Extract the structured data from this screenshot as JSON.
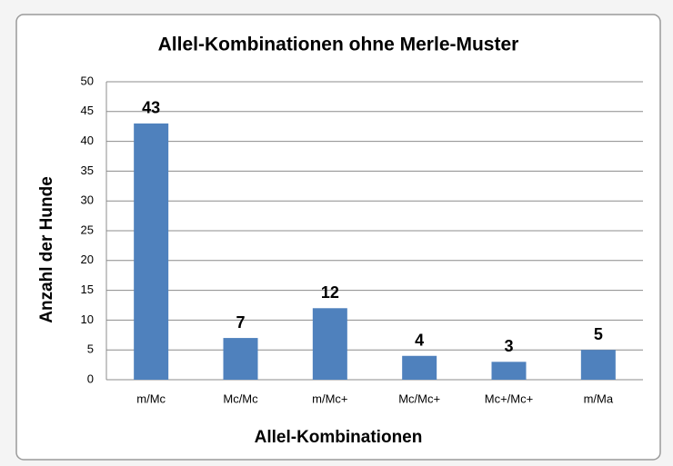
{
  "chart_data": {
    "type": "bar",
    "title": "Allel-Kombinationen ohne Merle-Muster",
    "x_label": "Allel-Kombinationen",
    "y_label": "Anzahl der Hunde",
    "categories": [
      "m/Mc",
      "Mc/Mc",
      "m/Mc+",
      "Mc/Mc+",
      "Mc+/Mc+",
      "m/Ma"
    ],
    "values": [
      43,
      7,
      12,
      4,
      3,
      5
    ],
    "color": "#4f81bd",
    "ylim": [
      0,
      50
    ],
    "yticks": [
      0,
      5,
      10,
      15,
      20,
      25,
      30,
      35,
      40,
      45,
      50
    ],
    "grid": true
  }
}
